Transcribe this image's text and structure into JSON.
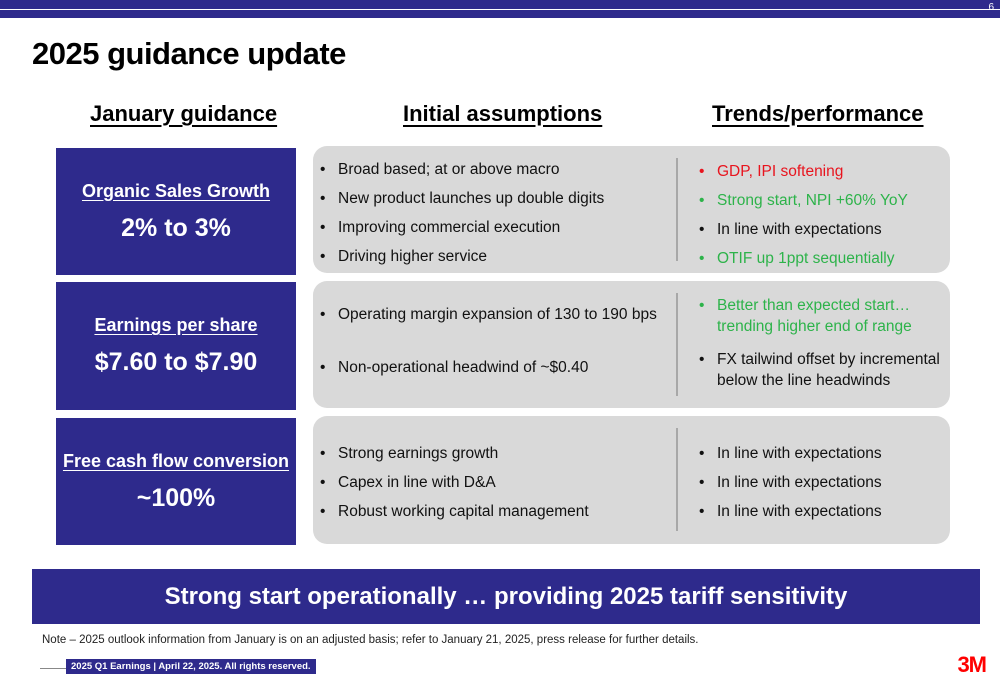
{
  "slide_number": "6",
  "title": "2025 guidance update",
  "colors": {
    "navy": "#2e2a8c",
    "red": "#e8141e",
    "green": "#2db34a",
    "gray": "#d9d9d9"
  },
  "headers": {
    "january": "January guidance",
    "initial": "Initial assumptions",
    "trends": "Trends/performance"
  },
  "rows": [
    {
      "label": "Organic Sales Growth",
      "value": "2% to 3%",
      "assumptions": [
        "Broad based; at or above macro",
        "New product launches up double digits",
        "Improving commercial execution",
        "Driving higher service"
      ],
      "trends": [
        {
          "text": "GDP, IPI softening",
          "color": "red"
        },
        {
          "text": "Strong start, NPI +60% YoY",
          "color": "green"
        },
        {
          "text": "In line with expectations",
          "color": "black"
        },
        {
          "text": "OTIF up 1ppt sequentially",
          "color": "green"
        }
      ]
    },
    {
      "label": "Earnings per share",
      "value": "$7.60 to $7.90",
      "assumptions": [
        "Operating margin expansion of 130 to 190 bps",
        "Non-operational headwind of ~$0.40"
      ],
      "trends": [
        {
          "text": "Better than expected start…trending higher end of range",
          "color": "green"
        },
        {
          "text": "FX tailwind offset by incremental below the line headwinds",
          "color": "black"
        }
      ]
    },
    {
      "label": "Free cash flow conversion",
      "value": "~100%",
      "assumptions": [
        "Strong earnings growth",
        "Capex in line with D&A",
        "Robust working capital management"
      ],
      "trends": [
        {
          "text": "In line with expectations",
          "color": "black"
        },
        {
          "text": "In line with expectations",
          "color": "black"
        },
        {
          "text": "In line with expectations",
          "color": "black"
        }
      ]
    }
  ],
  "banner": "Strong start operationally … providing 2025 tariff sensitivity",
  "note": "Note – 2025 outlook information from January is on an adjusted basis; refer to January 21, 2025, press release for further details.",
  "footer": "2025 Q1 Earnings | April 22, 2025. All rights reserved.",
  "logo_text": "3M"
}
